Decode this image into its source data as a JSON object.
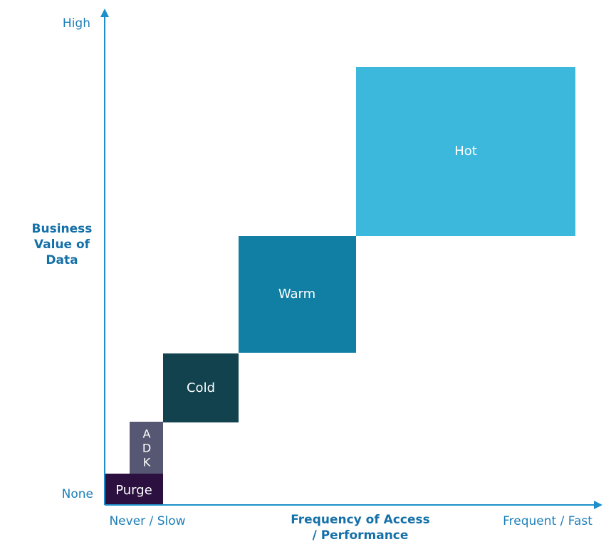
{
  "y_axis": {
    "high": "High",
    "low": "None",
    "title": [
      "Business",
      "Value of",
      "Data"
    ]
  },
  "x_axis": {
    "low": "Never / Slow",
    "high": "Frequent / Fast",
    "title": [
      "Frequency of Access",
      "/ Performance"
    ]
  },
  "tiers": {
    "purge": "Purge",
    "adk": [
      "A",
      "D",
      "K"
    ],
    "cold": "Cold",
    "warm": "Warm",
    "hot": "Hot"
  }
}
